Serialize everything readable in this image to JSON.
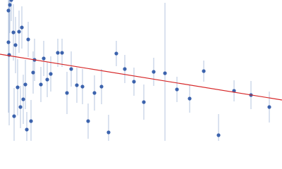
{
  "chart_data": {
    "type": "scatter",
    "xlim": [
      0,
      400
    ],
    "ylim": [
      0,
      200
    ],
    "x": [
      12,
      14,
      16,
      12,
      13,
      19,
      22,
      20,
      25,
      27,
      31,
      29,
      33,
      36,
      38,
      40,
      44,
      47,
      49,
      58,
      62,
      67,
      72,
      82,
      88,
      95,
      101,
      109,
      117,
      125,
      134,
      144,
      154,
      165,
      177,
      190,
      204,
      218,
      234,
      251,
      269,
      289,
      310,
      332,
      356,
      382
    ],
    "series": [
      {
        "color": "#3c63ad",
        "error_color": "#b4c4df",
        "values": [
          185,
          193,
          200,
          140,
          122,
          154,
          136,
          35,
          76,
          155,
          161,
          48,
          59,
          80,
          16,
          144,
          28,
          97,
          115,
          80,
          117,
          87,
          95,
          125,
          125,
          68,
          102,
          79,
          77,
          28,
          68,
          77,
          12,
          124,
          102,
          84,
          55,
          98,
          96,
          73,
          60,
          99,
          8,
          71,
          65,
          48
        ],
        "errors": [
          60,
          40,
          30,
          100,
          100,
          40,
          40,
          40,
          40,
          30,
          30,
          30,
          35,
          35,
          25,
          25,
          30,
          30,
          30,
          25,
          25,
          25,
          25,
          20,
          20,
          30,
          25,
          25,
          25,
          25,
          25,
          25,
          25,
          18,
          20,
          20,
          25,
          20,
          100,
          18,
          20,
          15,
          30,
          15,
          20,
          22
        ]
      }
    ],
    "fit": {
      "x": [
        0,
        400
      ],
      "y": [
        123,
        58
      ],
      "color": "#d62728"
    }
  }
}
